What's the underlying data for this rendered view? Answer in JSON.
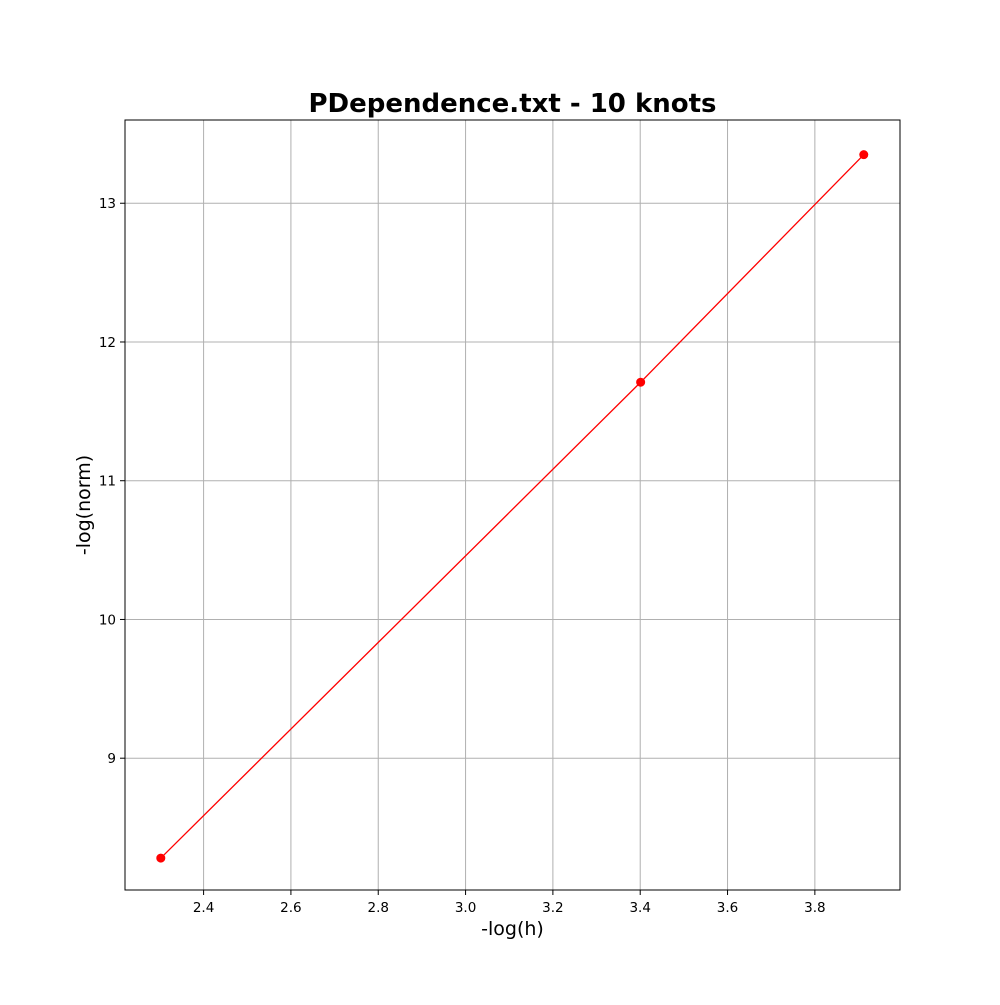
{
  "chart_data": {
    "type": "line",
    "title": "PDependence.txt - 10 knots",
    "xlabel": "-log(h)",
    "ylabel": "-log(norm)",
    "xlim": [
      2.22,
      3.995
    ],
    "ylim": [
      8.05,
      13.6
    ],
    "xticks": [
      2.4,
      2.6,
      2.8,
      3.0,
      3.2,
      3.4,
      3.6,
      3.8
    ],
    "xtick_labels": [
      "2.4",
      "2.6",
      "2.8",
      "3.0",
      "3.2",
      "3.4",
      "3.6",
      "3.8"
    ],
    "yticks": [
      9,
      10,
      11,
      12,
      13
    ],
    "ytick_labels": [
      "9",
      "10",
      "11",
      "12",
      "13"
    ],
    "grid": true,
    "series": [
      {
        "x": [
          2.302,
          3.401,
          3.912
        ],
        "y": [
          8.28,
          11.71,
          13.35
        ],
        "color": "#ff0000",
        "marker": "circle"
      }
    ]
  }
}
